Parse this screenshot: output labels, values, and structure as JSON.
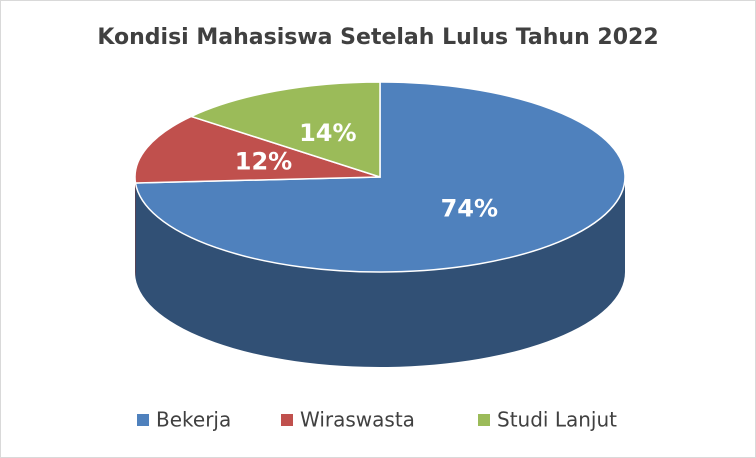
{
  "chart_data": {
    "type": "pie3d",
    "title": "Kondisi Mahasiswa Setelah Lulus Tahun 2022",
    "categories": [
      "Bekerja",
      "Wiraswasta",
      "Studi Lanjut"
    ],
    "values": [
      74,
      12,
      14
    ],
    "value_labels": [
      "74%",
      "12%",
      "14%"
    ],
    "colors": [
      "#4f81bd",
      "#c0504d",
      "#9bbb59"
    ],
    "legend": "bottom"
  }
}
